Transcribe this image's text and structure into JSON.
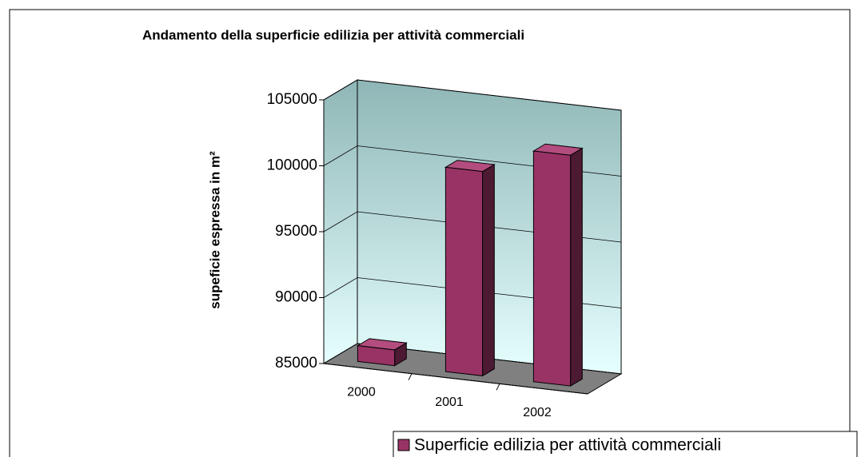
{
  "chart_data": {
    "type": "bar3d",
    "title": "Andamento della superficie edilizia per attività commerciali",
    "y_label": "supeficie espressa in m²",
    "categories": [
      "2000",
      "2001",
      "2002"
    ],
    "series": [
      {
        "name": "Superficie edilizia per attività commerciali",
        "color": "#993366",
        "values": [
          86200,
          100500,
          102500
        ]
      }
    ],
    "ylim": [
      85000,
      105000
    ],
    "yticks": [
      85000,
      90000,
      95000,
      100000,
      105000
    ],
    "grid": true,
    "legend": "bottom-right"
  }
}
